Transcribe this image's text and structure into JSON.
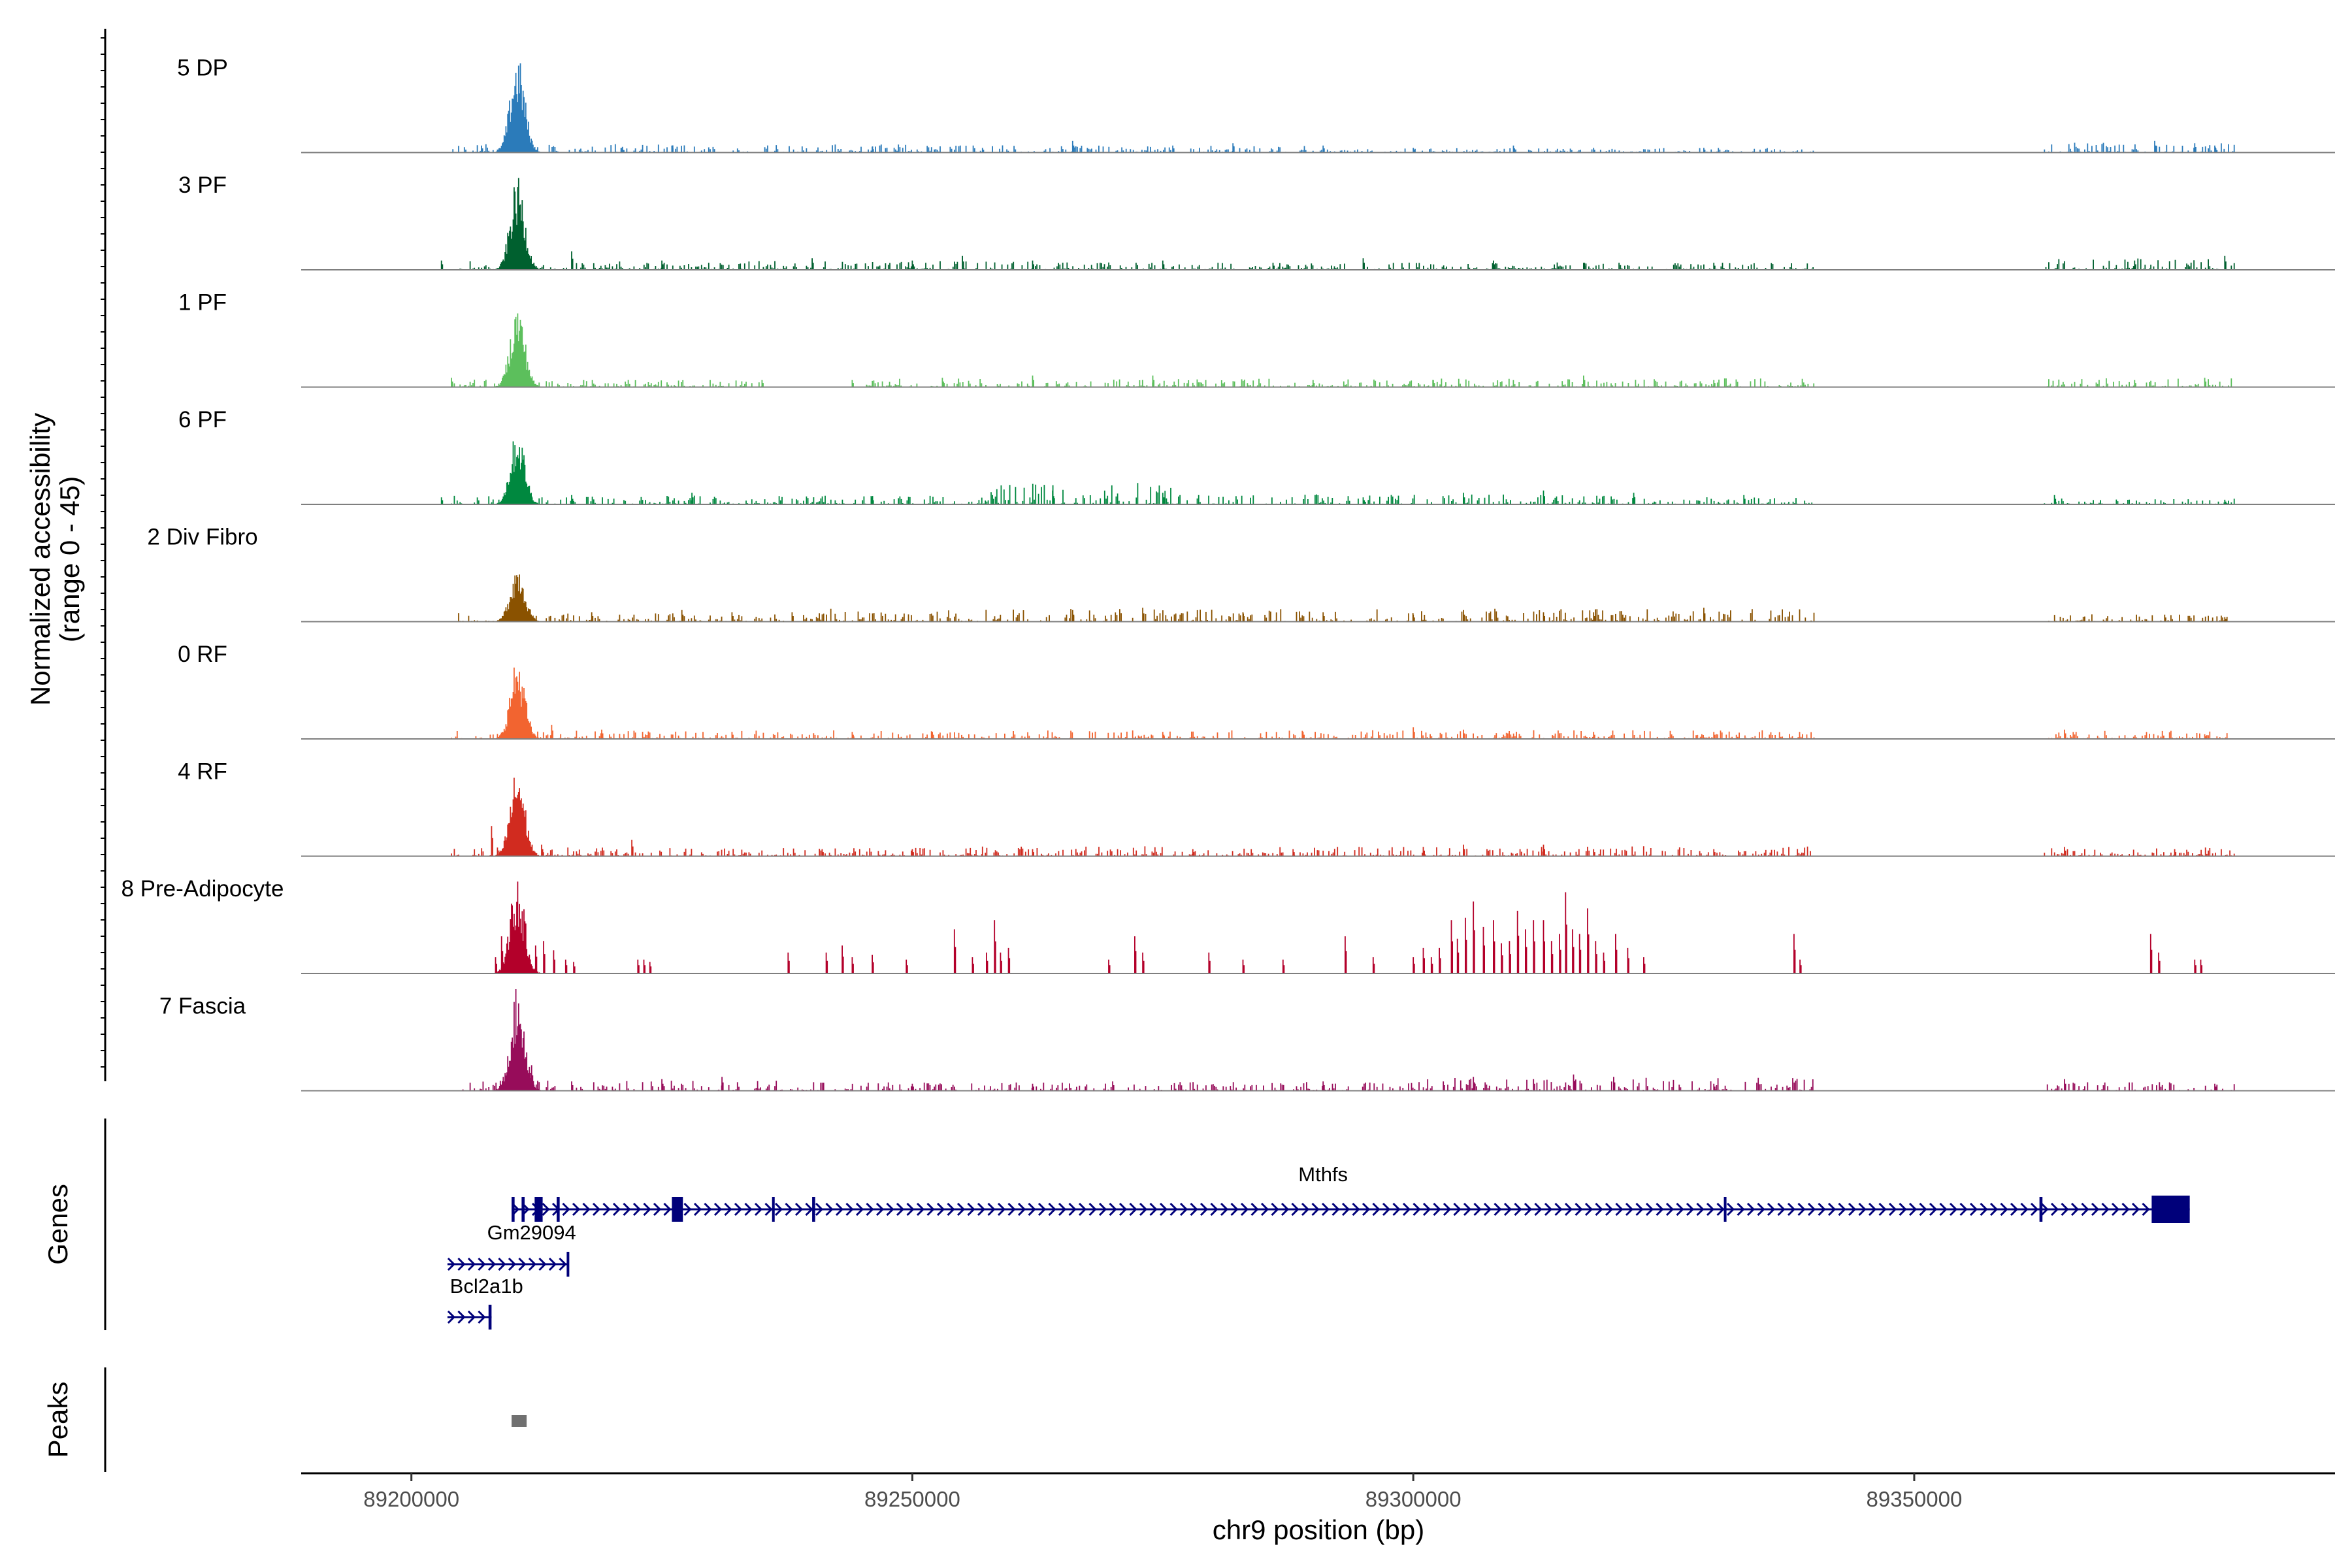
{
  "chart_data": {
    "type": "genome-coverage-track",
    "region": {
      "chromosome": "chr9",
      "start": 89189000,
      "end": 89392000
    },
    "coverage": {
      "ylabel": "Normalized accessibility",
      "ylabel_sub": "(range 0 - 45)",
      "ylim": [
        0,
        45
      ],
      "tracks": [
        {
          "label": "5 DP",
          "color": "#2b7bba",
          "main_peak": 42,
          "spikes": [
            [
              89207000,
              3
            ],
            [
              89221000,
              2
            ],
            [
              89226000,
              3
            ],
            [
              89246000,
              2.5
            ],
            [
              89257000,
              2
            ],
            [
              89266000,
              5
            ],
            [
              89276000,
              3
            ],
            [
              89282000,
              4
            ],
            [
              89291000,
              3
            ],
            [
              89300000,
              2
            ],
            [
              89310000,
              3
            ],
            [
              89318000,
              2
            ],
            [
              89329000,
              2
            ],
            [
              89374000,
              5
            ],
            [
              89378000,
              4
            ],
            [
              89380000,
              3
            ]
          ],
          "activity": [
            [
              89204000,
              89257000,
              0.6
            ],
            [
              89258000,
              89290000,
              0.5
            ],
            [
              89290000,
              89340000,
              0.3
            ],
            [
              89363000,
              89382000,
              0.7
            ]
          ]
        },
        {
          "label": "3 PF",
          "color": "#00602f",
          "main_peak": 40,
          "spikes": [
            [
              89203000,
              4
            ],
            [
              89216000,
              8
            ],
            [
              89225000,
              4
            ],
            [
              89240000,
              5
            ],
            [
              89250000,
              4
            ],
            [
              89255000,
              6
            ],
            [
              89262000,
              4
            ],
            [
              89275000,
              4
            ],
            [
              89286000,
              3
            ],
            [
              89295000,
              5
            ],
            [
              89308000,
              4
            ],
            [
              89317000,
              3
            ],
            [
              89330000,
              3
            ],
            [
              89372000,
              4
            ],
            [
              89381000,
              6
            ]
          ],
          "activity": [
            [
              89204000,
              89262000,
              0.6
            ],
            [
              89262000,
              89340000,
              0.5
            ],
            [
              89363000,
              89382000,
              0.8
            ]
          ]
        },
        {
          "label": "1 PF",
          "color": "#5cbf5c",
          "main_peak": 36,
          "spikes": [
            [
              89204000,
              4
            ],
            [
              89210000,
              3
            ],
            [
              89235000,
              3
            ],
            [
              89244000,
              3
            ],
            [
              89253000,
              4
            ],
            [
              89262000,
              5
            ],
            [
              89274000,
              5
            ],
            [
              89290000,
              3
            ],
            [
              89302000,
              3
            ],
            [
              89317000,
              5
            ],
            [
              89330000,
              3
            ],
            [
              89372000,
              3
            ],
            [
              89379000,
              4
            ]
          ],
          "activity": [
            [
              89204000,
              89235000,
              0.5
            ],
            [
              89245000,
              89340000,
              0.6
            ],
            [
              89363000,
              89382000,
              0.6
            ]
          ]
        },
        {
          "label": "6 PF",
          "color": "#00883f",
          "main_peak": 33,
          "spikes": [
            [
              89203000,
              3
            ],
            [
              89216000,
              4
            ],
            [
              89228000,
              5
            ],
            [
              89246000,
              3
            ],
            [
              89258000,
              4
            ],
            [
              89264000,
              6
            ],
            [
              89275000,
              5
            ],
            [
              89295000,
              3
            ],
            [
              89305000,
              5
            ],
            [
              89313000,
              6
            ],
            [
              89322000,
              5
            ],
            [
              89333000,
              4
            ],
            [
              89364000,
              4
            ],
            [
              89381000,
              2
            ]
          ],
          "activity": [
            [
              89204000,
              89257000,
              0.6
            ],
            [
              89257000,
              89276000,
              1.6
            ],
            [
              89276000,
              89325000,
              0.7
            ],
            [
              89325000,
              89340000,
              0.5
            ],
            [
              89363000,
              89382000,
              0.4
            ]
          ]
        },
        {
          "label": "2 Div Fibro",
          "color": "#8a5200",
          "main_peak": 25,
          "spikes": [
            [
              89210000,
              8
            ],
            [
              89218000,
              4
            ],
            [
              89227000,
              5
            ],
            [
              89232000,
              4
            ],
            [
              89238000,
              4
            ],
            [
              89266000,
              5
            ],
            [
              89273000,
              6
            ],
            [
              89283000,
              4
            ],
            [
              89291000,
              4
            ],
            [
              89300000,
              3
            ],
            [
              89305000,
              5
            ],
            [
              89313000,
              4
            ],
            [
              89318000,
              4
            ],
            [
              89329000,
              6
            ],
            [
              89375000,
              3
            ],
            [
              89381000,
              2
            ]
          ],
          "activity": [
            [
              89204000,
              89240000,
              0.6
            ],
            [
              89240000,
              89340000,
              0.9
            ],
            [
              89363000,
              89382000,
              0.5
            ]
          ]
        },
        {
          "label": "0 RF",
          "color": "#f26430",
          "main_peak": 35,
          "spikes": [
            [
              89214000,
              6
            ],
            [
              89219000,
              4
            ],
            [
              89232000,
              3
            ],
            [
              89244000,
              3
            ],
            [
              89252000,
              3
            ],
            [
              89275000,
              3
            ],
            [
              89289000,
              3
            ],
            [
              89300000,
              5
            ],
            [
              89305000,
              4
            ],
            [
              89318000,
              3
            ],
            [
              89330000,
              3
            ],
            [
              89365000,
              4
            ],
            [
              89379000,
              2
            ]
          ],
          "activity": [
            [
              89204000,
              89240000,
              0.6
            ],
            [
              89240000,
              89340000,
              0.6
            ],
            [
              89363000,
              89382000,
              0.6
            ]
          ]
        },
        {
          "label": "4 RF",
          "color": "#d12b1f",
          "main_peak": 39,
          "spikes": [
            [
              89208000,
              13
            ],
            [
              89213000,
              5
            ],
            [
              89222000,
              7
            ],
            [
              89241000,
              3
            ],
            [
              89250000,
              3
            ],
            [
              89262000,
              3
            ],
            [
              89278000,
              3
            ],
            [
              89288000,
              3
            ],
            [
              89301000,
              4
            ],
            [
              89305000,
              5
            ],
            [
              89313000,
              5
            ],
            [
              89318000,
              3
            ],
            [
              89330000,
              3
            ],
            [
              89365000,
              4
            ],
            [
              89376000,
              3
            ]
          ],
          "activity": [
            [
              89204000,
              89257000,
              0.6
            ],
            [
              89257000,
              89340000,
              0.7
            ],
            [
              89363000,
              89382000,
              0.6
            ]
          ]
        },
        {
          "label": "8 Pre-Adipocyte",
          "color": "#b3002a",
          "main_peak": 41,
          "spikes": [
            [
              89208400,
              7
            ],
            [
              89209000,
              16
            ],
            [
              89210000,
              30
            ],
            [
              89210800,
              16
            ],
            [
              89211400,
              10
            ],
            [
              89212400,
              12
            ],
            [
              89213200,
              14
            ],
            [
              89214200,
              10
            ],
            [
              89215400,
              6
            ],
            [
              89216200,
              5
            ],
            [
              89222600,
              6
            ],
            [
              89223200,
              6
            ],
            [
              89223800,
              5
            ],
            [
              89237600,
              9
            ],
            [
              89241400,
              9
            ],
            [
              89243000,
              12
            ],
            [
              89244000,
              7
            ],
            [
              89246000,
              8
            ],
            [
              89249400,
              6
            ],
            [
              89254200,
              19
            ],
            [
              89256000,
              7
            ],
            [
              89257400,
              9
            ],
            [
              89258200,
              23
            ],
            [
              89258800,
              9
            ],
            [
              89259600,
              11
            ],
            [
              89269600,
              6
            ],
            [
              89272200,
              16
            ],
            [
              89273000,
              9
            ],
            [
              89279600,
              9
            ],
            [
              89283000,
              6
            ],
            [
              89287000,
              6
            ],
            [
              89293200,
              16
            ],
            [
              89296000,
              7
            ],
            [
              89300000,
              7
            ],
            [
              89301000,
              11
            ],
            [
              89301800,
              7
            ],
            [
              89302600,
              11
            ],
            [
              89303800,
              23
            ],
            [
              89304400,
              15
            ],
            [
              89305200,
              24
            ],
            [
              89306000,
              31
            ],
            [
              89307000,
              20
            ],
            [
              89308000,
              23
            ],
            [
              89308800,
              13
            ],
            [
              89309600,
              14
            ],
            [
              89310400,
              27
            ],
            [
              89311200,
              19
            ],
            [
              89312000,
              23
            ],
            [
              89313000,
              23
            ],
            [
              89313800,
              14
            ],
            [
              89314600,
              17
            ],
            [
              89315200,
              35
            ],
            [
              89315900,
              19
            ],
            [
              89316600,
              17
            ],
            [
              89317400,
              28
            ],
            [
              89318200,
              14
            ],
            [
              89319000,
              9
            ],
            [
              89320200,
              17
            ],
            [
              89321400,
              11
            ],
            [
              89323000,
              7
            ],
            [
              89338000,
              17
            ],
            [
              89338600,
              6
            ],
            [
              89373600,
              17
            ],
            [
              89374400,
              9
            ],
            [
              89378000,
              6
            ],
            [
              89378600,
              6
            ]
          ],
          "activity": []
        },
        {
          "label": "7 Fascia",
          "color": "#970c5a",
          "main_peak": 45,
          "spikes": [
            [
              89210500,
              24
            ],
            [
              89212000,
              11
            ],
            [
              89216000,
              4
            ],
            [
              89225000,
              5
            ],
            [
              89231000,
              6
            ],
            [
              89250000,
              3
            ],
            [
              89262000,
              3
            ],
            [
              89270000,
              4
            ],
            [
              89291000,
              4
            ],
            [
              89303000,
              4
            ],
            [
              89306000,
              6
            ],
            [
              89312000,
              5
            ],
            [
              89316000,
              7
            ],
            [
              89320000,
              6
            ],
            [
              89330000,
              3
            ],
            [
              89365000,
              5
            ],
            [
              89380000,
              3
            ]
          ],
          "activity": [
            [
              89205000,
              89240000,
              0.7
            ],
            [
              89240000,
              89300000,
              0.6
            ],
            [
              89300000,
              89340000,
              0.9
            ],
            [
              89363000,
              89382000,
              0.6
            ]
          ]
        }
      ]
    },
    "genes": {
      "title": "Genes",
      "items": [
        {
          "name": "Mthfs",
          "start": 89210000,
          "end": 89377500,
          "strand": "+",
          "exons": [
            [
              89210000,
              89210300
            ],
            [
              89211000,
              89211300
            ],
            [
              89212300,
              89213100
            ],
            [
              89214500,
              89214800
            ],
            [
              89226000,
              89227100
            ],
            [
              89236000,
              89236200
            ],
            [
              89240000,
              89240300
            ],
            [
              89331000,
              89331200
            ],
            [
              89362500,
              89362800
            ],
            [
              89373700,
              89377500
            ]
          ]
        },
        {
          "name": "Gm29094",
          "start": 89203600,
          "end": 89215700,
          "strand": "+",
          "exons": [
            [
              89215500,
              89215700
            ]
          ]
        },
        {
          "name": "Bcl2a1b",
          "start": 89203600,
          "end": 89208000,
          "strand": "+",
          "exons": [
            [
              89207700,
              89208000
            ]
          ]
        }
      ]
    },
    "peaks": {
      "title": "Peaks",
      "color": "#707070",
      "items": [
        [
          89210000,
          89211500
        ]
      ]
    },
    "xaxis": {
      "label": "chr9 position (bp)",
      "ticks": [
        89200000,
        89250000,
        89300000,
        89350000
      ],
      "tick_labels": [
        "89200000",
        "89250000",
        "89300000",
        "89350000"
      ]
    }
  }
}
